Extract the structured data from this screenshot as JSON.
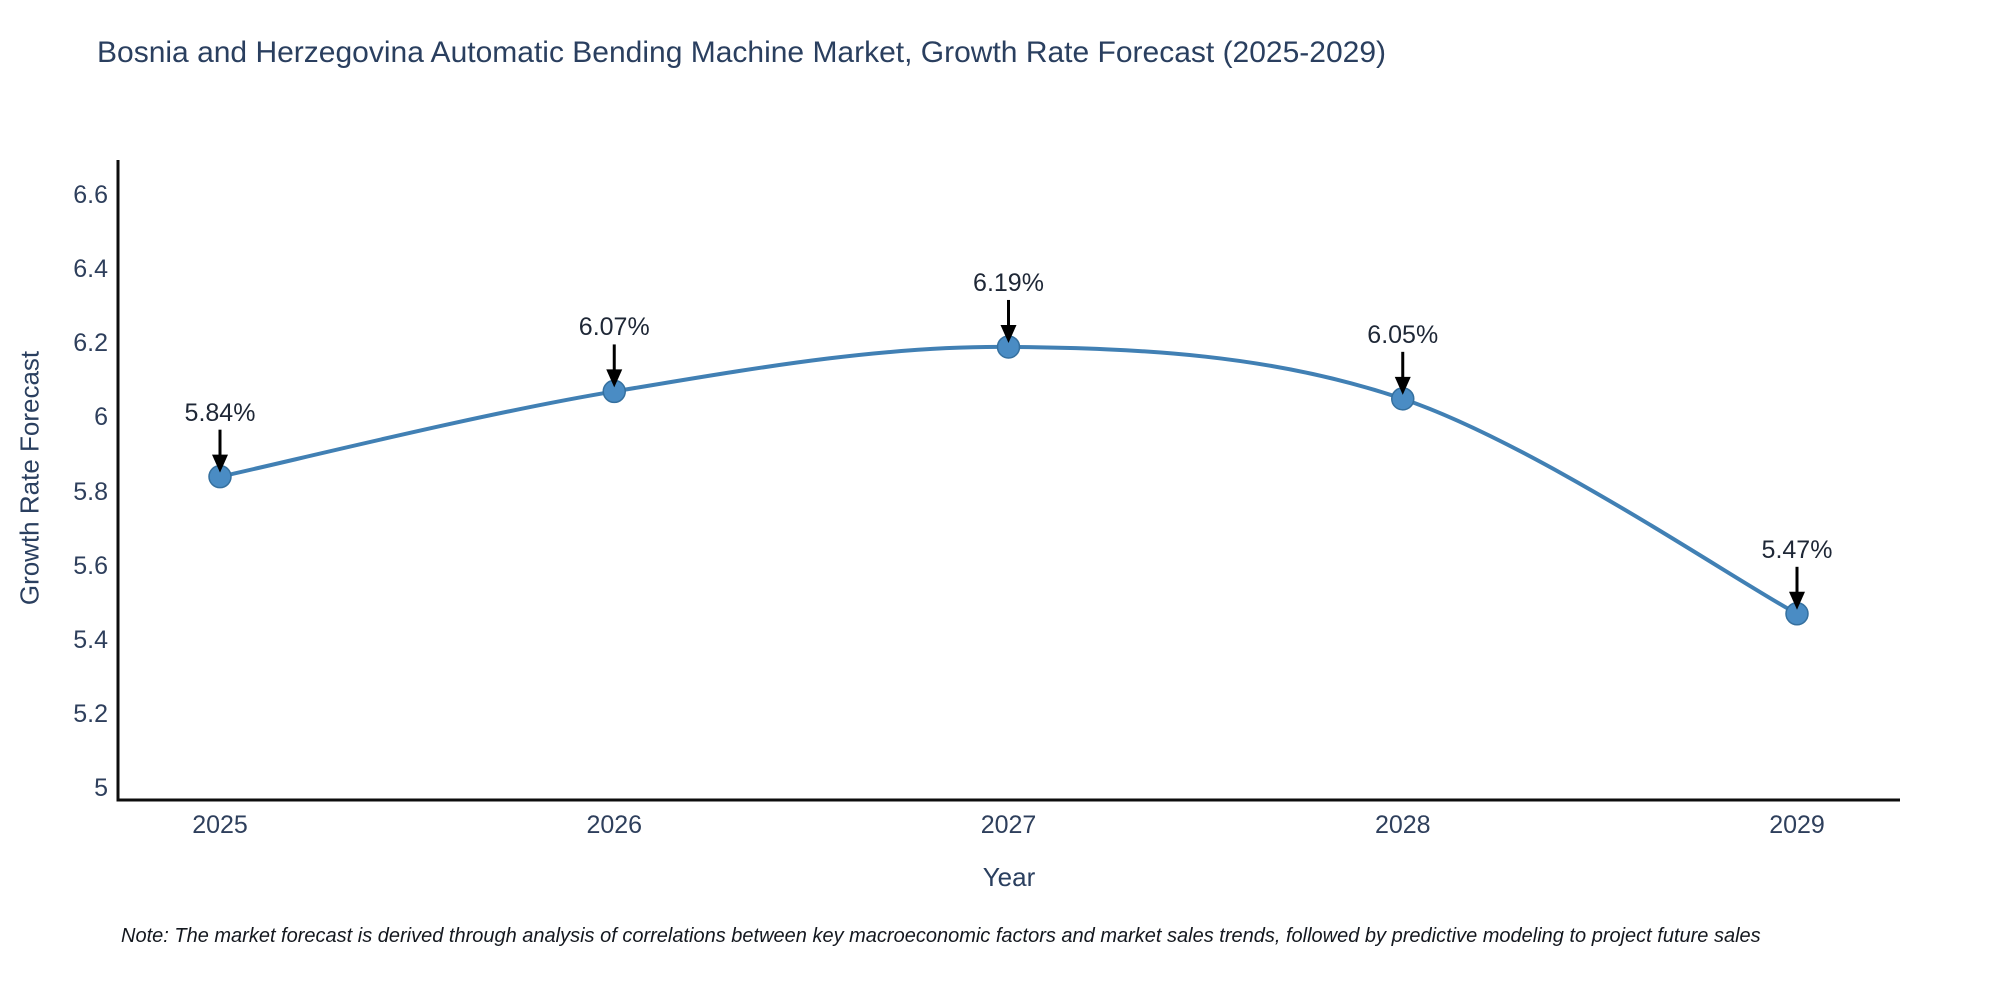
{
  "chart": {
    "title": "Bosnia and Herzegovina Automatic Bending Machine Market, Growth Rate Forecast (2025-2029)",
    "xlabel": "Year",
    "ylabel": "Growth Rate Forecast"
  },
  "chart_data": {
    "type": "line",
    "title": "Bosnia and Herzegovina Automatic Bending Machine Market, Growth Rate Forecast (2025-2029)",
    "xlabel": "Year",
    "ylabel": "Growth Rate Forecast",
    "x": [
      2025,
      2026,
      2027,
      2028,
      2029
    ],
    "xtick_labels": [
      "2025",
      "2026",
      "2027",
      "2028",
      "2029"
    ],
    "values": [
      5.84,
      6.07,
      6.19,
      6.05,
      5.47
    ],
    "point_labels": [
      "5.84%",
      "6.07%",
      "6.19%",
      "6.05%",
      "5.47%"
    ],
    "ylim": [
      5,
      6.6
    ],
    "yticks": [
      5,
      5.2,
      5.4,
      5.6,
      5.8,
      6,
      6.2,
      6.4,
      6.6
    ],
    "ytick_labels": [
      "5",
      "5.2",
      "5.4",
      "5.6",
      "5.8",
      "6",
      "6.2",
      "6.4",
      "6.6"
    ],
    "grid": false,
    "legend": false,
    "line_shape": "spline",
    "markers": true,
    "annotation_arrows": true
  },
  "note": "Note: The market forecast is derived through analysis of correlations between key macroeconomic factors and market sales trends, followed by predictive modeling to project future sales",
  "colors": {
    "background": "#ffffff",
    "title_text": "#2a3f5f",
    "tick_text": "#2e3f5c",
    "label_text": "#1e2736",
    "line": "#4180b4",
    "marker_fill": "#4a8cc4",
    "marker_edge": "#35709f",
    "axis_line": "#0d0d0d",
    "arrow": "#000000",
    "note_text": "#14181f"
  }
}
